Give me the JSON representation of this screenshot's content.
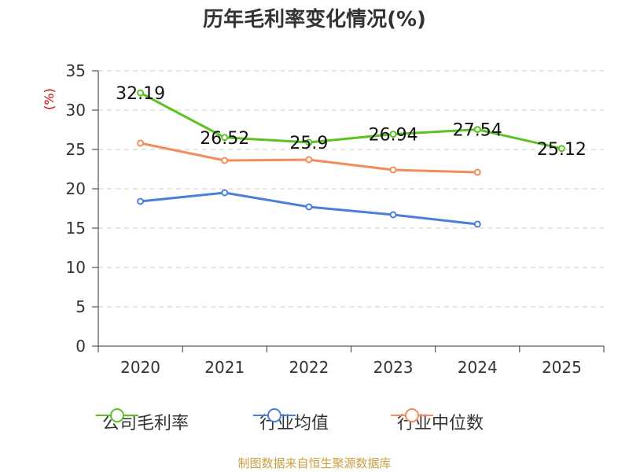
{
  "chart_data": {
    "type": "line",
    "title": "历年毛利率变化情况(%)",
    "ylabel": "(%)",
    "xlabel": "",
    "categories": [
      "2020",
      "2021",
      "2022",
      "2023",
      "2024",
      "2025"
    ],
    "ylim": [
      0,
      35
    ],
    "yticks": [
      0,
      5,
      10,
      15,
      20,
      25,
      30,
      35
    ],
    "grid": true,
    "legend_position": "bottom",
    "series": [
      {
        "name": "公司毛利率",
        "color": "#5cc122",
        "values": [
          32.19,
          26.52,
          25.9,
          26.94,
          27.54,
          25.12
        ],
        "labels": [
          "32.19",
          "26.52",
          "25.9",
          "26.94",
          "27.54",
          "25.12"
        ]
      },
      {
        "name": "行业均值",
        "color": "#4a7fdb",
        "values": [
          18.4,
          19.5,
          17.7,
          16.7,
          15.5,
          null
        ]
      },
      {
        "name": "行业中位数",
        "color": "#f28c5a",
        "values": [
          25.8,
          23.6,
          23.7,
          22.4,
          22.1,
          null
        ]
      }
    ]
  },
  "source": "制图数据来自恒生聚源数据库"
}
